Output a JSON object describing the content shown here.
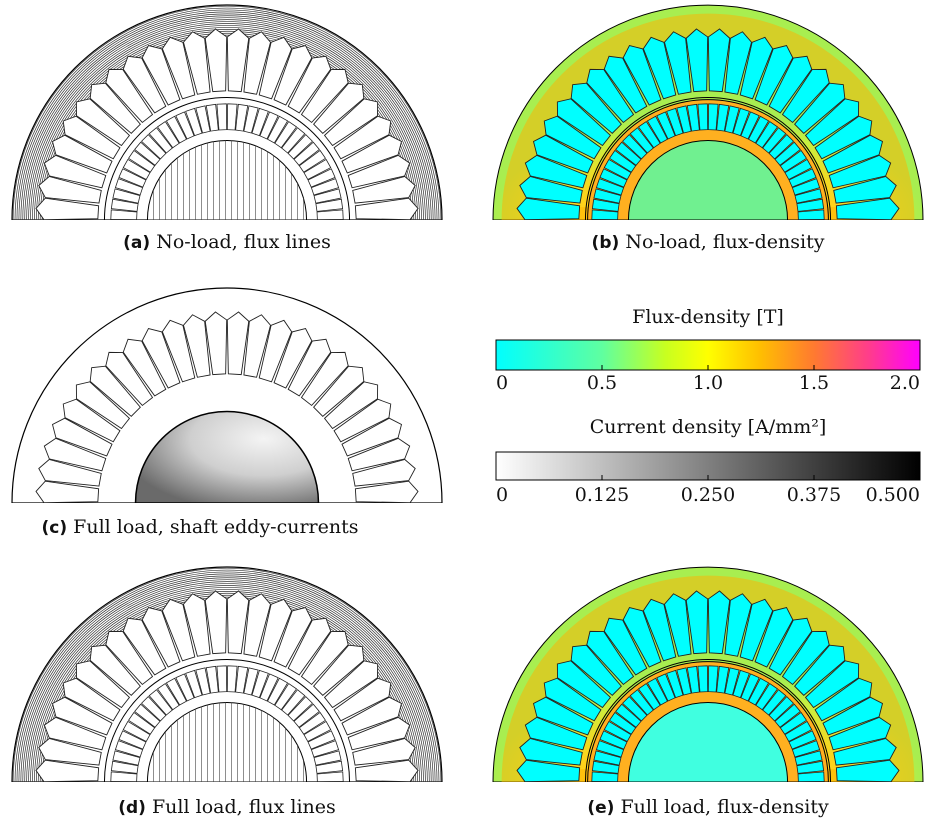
{
  "panels": [
    {
      "label": "(a)",
      "caption": "No-load, flux lines"
    },
    {
      "label": "(b)",
      "caption": "No-load, flux-density"
    },
    {
      "label": "(c)",
      "caption": "Full load, shaft eddy-currents"
    },
    {
      "label": "(d)",
      "caption": "Full load, flux lines"
    },
    {
      "label": "(e)",
      "caption": "Full load, flux-density"
    }
  ],
  "colorbars": [
    {
      "title": "Flux-density [T]",
      "ticks": [
        0,
        0.5,
        {
          "value": 1,
          "label": "1.0"
        },
        1.5,
        {
          "value": 2,
          "label": "2.0"
        }
      ]
    },
    {
      "title": "Current density [A/mm²]",
      "ticks": [
        0,
        0.125,
        {
          "value": 0.25,
          "label": "0.250"
        },
        0.375,
        {
          "value": 0.5,
          "label": "0.500"
        }
      ]
    }
  ]
}
